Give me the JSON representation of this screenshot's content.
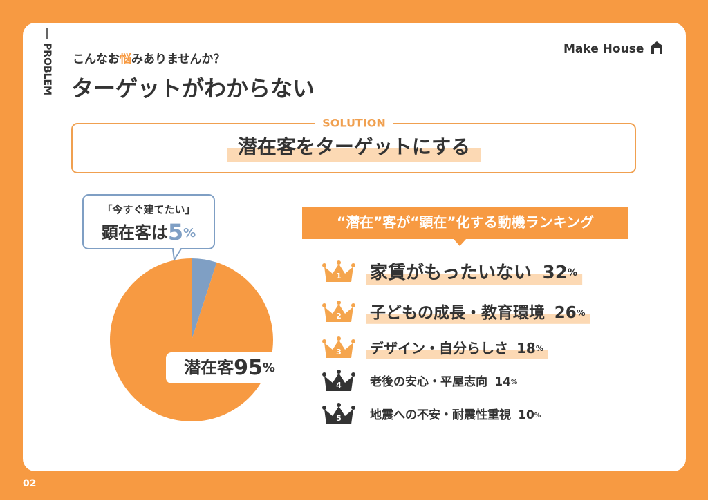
{
  "header": {
    "section": "PROBLEM",
    "subtitle": [
      "こんなお",
      "悩",
      "みありませんか？"
    ],
    "title": "ターゲットがわからない",
    "logo": "Make House"
  },
  "solution": {
    "label": "SOLUTION",
    "text": "潜在客をターゲットにする"
  },
  "chart_data": {
    "type": "pie",
    "categories": [
      "顕在客は",
      "潜在客"
    ],
    "values": [
      5,
      95
    ],
    "colors": [
      "#7f9fc4",
      "#f79a42"
    ],
    "unit": "%",
    "annotation": "「今すぐ建てたい」"
  },
  "ranking": {
    "title": "“潜在”客が“顕在”化する動機ランキング",
    "unit": "%",
    "items": [
      {
        "rank": "1",
        "label": "家賃がもったいない",
        "value": "32"
      },
      {
        "rank": "2",
        "label": "子どもの成長・教育環境",
        "value": "26"
      },
      {
        "rank": "3",
        "label": "デザイン・自分らしさ",
        "value": "18"
      },
      {
        "rank": "4",
        "label": "老後の安心・平屋志向",
        "value": "14"
      },
      {
        "rank": "5",
        "label": "地震への不安・耐震性重視",
        "value": "10"
      }
    ]
  },
  "footer": {
    "page": "02"
  }
}
